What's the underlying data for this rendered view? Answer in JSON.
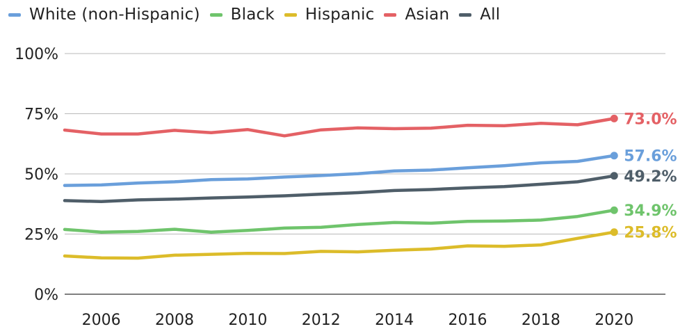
{
  "chart_data": {
    "type": "line",
    "title": "",
    "xlabel": "",
    "ylabel": "",
    "x": [
      2005,
      2006,
      2007,
      2008,
      2009,
      2010,
      2011,
      2012,
      2013,
      2014,
      2015,
      2016,
      2017,
      2018,
      2019,
      2020
    ],
    "xlim": [
      2005,
      2021.4
    ],
    "ylim": [
      0,
      100
    ],
    "grid": true,
    "legend_position": "top",
    "x_ticks": [
      {
        "value": 2006,
        "label": "2006"
      },
      {
        "value": 2008,
        "label": "2008"
      },
      {
        "value": 2010,
        "label": "2010"
      },
      {
        "value": 2012,
        "label": "2012"
      },
      {
        "value": 2014,
        "label": "2014"
      },
      {
        "value": 2016,
        "label": "2016"
      },
      {
        "value": 2018,
        "label": "2018"
      },
      {
        "value": 2020,
        "label": "2020"
      }
    ],
    "y_ticks": [
      {
        "value": 0,
        "label": "0%"
      },
      {
        "value": 25,
        "label": "25%"
      },
      {
        "value": 50,
        "label": "50%"
      },
      {
        "value": 75,
        "label": "75%"
      },
      {
        "value": 100,
        "label": "100%"
      }
    ],
    "series": [
      {
        "name": "White (non-Hispanic)",
        "color": "#6a9fdb",
        "values": [
          45.2,
          45.4,
          46.2,
          46.7,
          47.6,
          47.9,
          48.7,
          49.3,
          50.1,
          51.2,
          51.6,
          52.5,
          53.4,
          54.6,
          55.2,
          57.6
        ],
        "end_label": "57.6%"
      },
      {
        "name": "Black",
        "color": "#6fc46c",
        "values": [
          26.9,
          25.8,
          26.1,
          27.0,
          25.8,
          26.5,
          27.5,
          27.8,
          29.0,
          29.8,
          29.5,
          30.3,
          30.4,
          30.8,
          32.3,
          34.9
        ],
        "end_label": "34.9%"
      },
      {
        "name": "Hispanic",
        "color": "#dcbc2a",
        "values": [
          15.9,
          15.1,
          15.0,
          16.2,
          16.6,
          17.0,
          16.9,
          17.8,
          17.6,
          18.3,
          18.8,
          20.1,
          19.9,
          20.5,
          23.2,
          25.8
        ],
        "end_label": "25.8%"
      },
      {
        "name": "Asian",
        "color": "#e46165",
        "values": [
          68.2,
          66.6,
          66.6,
          68.1,
          67.1,
          68.4,
          65.8,
          68.3,
          69.1,
          68.8,
          69.0,
          70.2,
          70.0,
          71.0,
          70.4,
          73.0
        ],
        "end_label": "73.0%"
      },
      {
        "name": "All",
        "color": "#4f5e69",
        "values": [
          38.9,
          38.5,
          39.2,
          39.5,
          40.0,
          40.4,
          40.9,
          41.6,
          42.2,
          43.1,
          43.5,
          44.2,
          44.7,
          45.7,
          46.7,
          49.2
        ],
        "end_label": "49.2%"
      }
    ]
  }
}
